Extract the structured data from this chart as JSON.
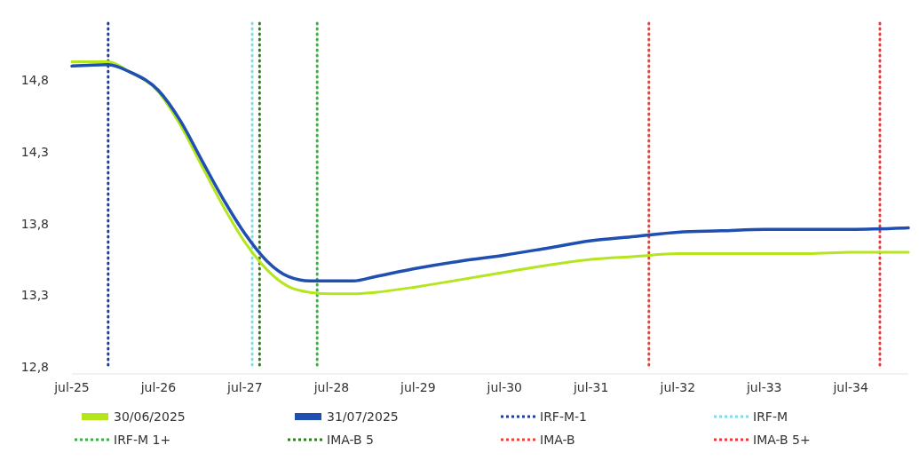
{
  "chart_data": {
    "type": "line",
    "x": [
      "2025-07",
      "2025-12",
      "2026-03",
      "2026-07",
      "2026-10",
      "2027-01",
      "2027-04",
      "2027-07",
      "2027-10",
      "2028-01",
      "2028-04",
      "2028-07",
      "2028-10",
      "2029-01",
      "2029-07",
      "2030-01",
      "2030-07",
      "2031-01",
      "2031-07",
      "2032-01",
      "2032-07",
      "2033-01",
      "2033-07",
      "2034-01",
      "2034-07",
      "2035-03"
    ],
    "series": [
      {
        "name": "30/06/2025",
        "color": "#b5e61d",
        "values": [
          14.93,
          14.93,
          14.86,
          14.72,
          14.49,
          14.2,
          13.92,
          13.67,
          13.48,
          13.36,
          13.32,
          13.31,
          13.31,
          13.32,
          13.36,
          13.41,
          13.46,
          13.51,
          13.55,
          13.57,
          13.59,
          13.59,
          13.59,
          13.59,
          13.6,
          13.6
        ]
      },
      {
        "name": "31/07/2025",
        "color": "#1f4fb0",
        "values": [
          14.9,
          14.91,
          14.86,
          14.73,
          14.52,
          14.24,
          13.97,
          13.73,
          13.54,
          13.43,
          13.4,
          13.4,
          13.4,
          13.43,
          13.49,
          13.54,
          13.58,
          13.63,
          13.68,
          13.71,
          13.74,
          13.75,
          13.76,
          13.76,
          13.76,
          13.77
        ]
      }
    ],
    "xlim": [
      "2025-07",
      "2035-03"
    ],
    "xticks": [
      {
        "value": "2025-07",
        "label": "jul-25"
      },
      {
        "value": "2026-07",
        "label": "jul-26"
      },
      {
        "value": "2027-07",
        "label": "jul-27"
      },
      {
        "value": "2028-07",
        "label": "jul-28"
      },
      {
        "value": "2029-07",
        "label": "jul-29"
      },
      {
        "value": "2030-07",
        "label": "jul-30"
      },
      {
        "value": "2031-07",
        "label": "jul-31"
      },
      {
        "value": "2032-07",
        "label": "jul-32"
      },
      {
        "value": "2033-07",
        "label": "jul-33"
      },
      {
        "value": "2034-07",
        "label": "jul-34"
      }
    ],
    "ylim": [
      12.8,
      15.2
    ],
    "yticks": [
      {
        "value": 12.8,
        "label": "12,8"
      },
      {
        "value": 13.3,
        "label": "13,3"
      },
      {
        "value": 13.8,
        "label": "13,8"
      },
      {
        "value": 14.3,
        "label": "14,3"
      },
      {
        "value": 14.8,
        "label": "14,8"
      }
    ],
    "ref_lines": [
      {
        "axis": "x",
        "value": "2025-12",
        "label": "IRF-M-1",
        "color": "#1f3f9f",
        "line_style": "dotted"
      },
      {
        "axis": "x",
        "value": "2027-08",
        "label": "IRF-M",
        "color": "#7fdcef",
        "line_style": "dotted"
      },
      {
        "axis": "x",
        "value": "2028-05",
        "label": "IRF-M 1+",
        "color": "#3cb043",
        "line_style": "dotted"
      },
      {
        "axis": "x",
        "value": "2027-09",
        "label": "IMA-B 5",
        "color": "#2e7d1e",
        "line_style": "dotted"
      },
      {
        "axis": "x",
        "value": "2032-03",
        "label": "IMA-B",
        "color": "#ef4136",
        "line_style": "dotted"
      },
      {
        "axis": "x",
        "value": "2034-11",
        "label": "IMA-B 5+",
        "color": "#f0363b",
        "line_style": "dotted"
      }
    ],
    "grid": false,
    "legend": "bottom",
    "line_style": "solid"
  }
}
